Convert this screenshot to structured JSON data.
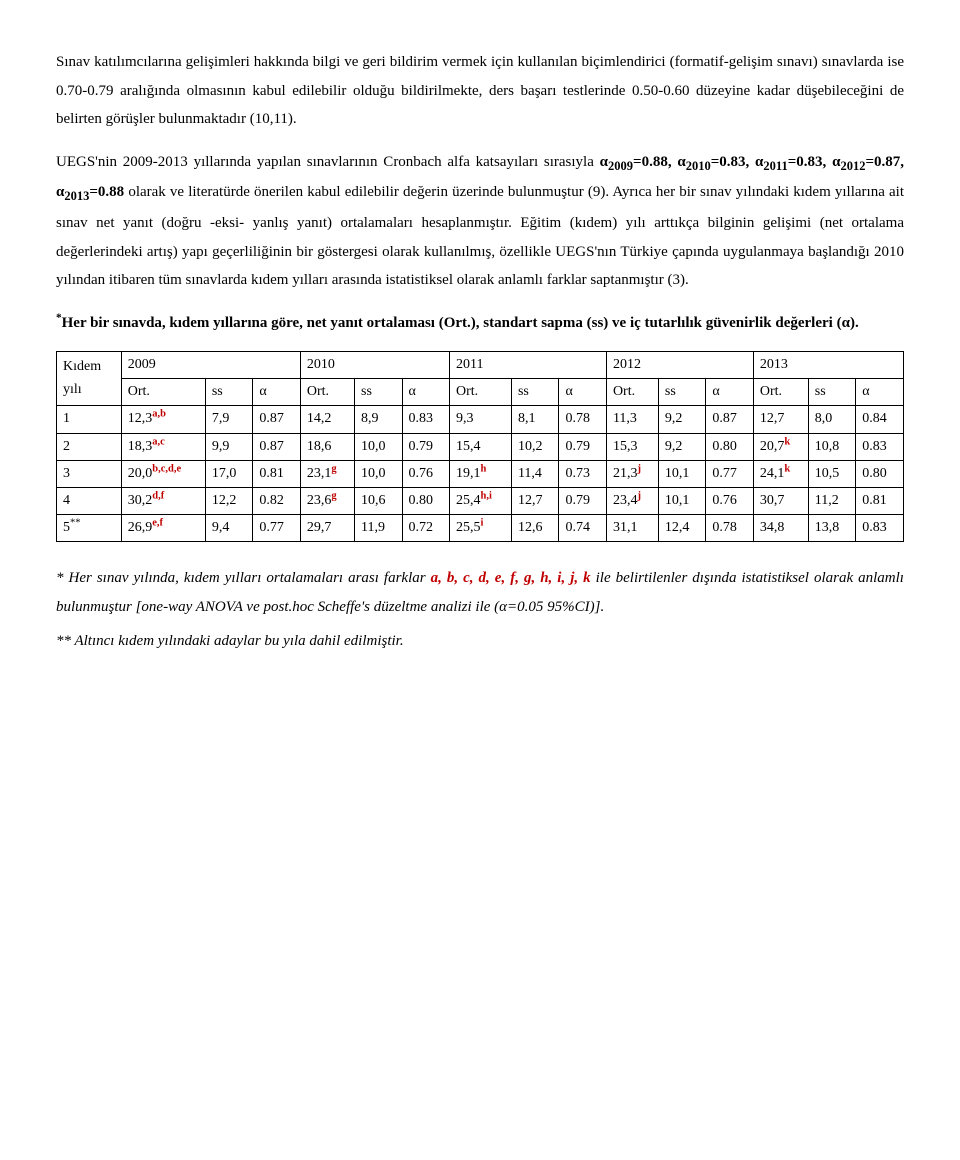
{
  "para1": "Sınav katılımcılarına gelişimleri hakkında bilgi ve geri bildirim vermek için kullanılan biçimlendirici (formatif-gelişim sınavı) sınavlarda ise 0.70-0.79 aralığında olmasının kabul edilebilir olduğu bildirilmekte, ders başarı testlerinde 0.50-0.60 düzeyine kadar düşebileceğini de belirten görüşler bulunmaktadır (10,11).",
  "para2_pre": "UEGS'nin 2009-2013 yıllarında yapılan sınavlarının Cronbach alfa katsayıları sırasıyla ",
  "alpha_list": {
    "a2009_lbl": "α",
    "a2009_sub": "2009",
    "a2009_val": "=0.88, ",
    "a2010_lbl": "α",
    "a2010_sub": "2010",
    "a2010_val": "=0.83, ",
    "a2011_lbl": "α",
    "a2011_sub": "2011",
    "a2011_val": "=0.83, ",
    "a2012_lbl": "α",
    "a2012_sub": "2012",
    "a2012_val": "=0.87, ",
    "a2013_lbl": "α",
    "a2013_sub": "2013",
    "a2013_val": "=0.88"
  },
  "para2_post": " olarak ve literatürde önerilen kabul edilebilir değerin üzerinde bulunmuştur (9). Ayrıca her bir sınav yılındaki kıdem yıllarına ait sınav net yanıt (doğru -eksi- yanlış yanıt) ortalamaları hesaplanmıştır. Eğitim (kıdem) yılı arttıkça bilginin gelişimi (net ortalama değerlerindeki artış) yapı geçerliliğinin bir göstergesi olarak kullanılmış, özellikle UEGS'nın Türkiye çapında uygulanmaya başlandığı 2010 yılından itibaren tüm sınavlarda kıdem yılları arasında istatistiksel olarak anlamlı farklar saptanmıştır (3).",
  "table_caption_star": "*",
  "table_caption": "Her bir sınavda, kıdem yıllarına göre, net yanıt ortalaması (Ort.), standart sapma (ss) ve iç tutarlılık güvenirlik değerleri (α).",
  "table": {
    "header": {
      "kidem_line1": "Kıdem",
      "kidem_line2": "yılı",
      "years": [
        "2009",
        "2010",
        "2011",
        "2012",
        "2013"
      ],
      "subcols": [
        "Ort.",
        "ss",
        "α"
      ]
    },
    "rows": [
      {
        "kidem": "1",
        "kidem_sup": "",
        "cells": [
          {
            "ort": "12,3",
            "sup": "a,b",
            "sup_red": true,
            "ss": "7,9",
            "a": "0.87"
          },
          {
            "ort": "14,2",
            "sup": "",
            "sup_red": false,
            "ss": "8,9",
            "a": "0.83"
          },
          {
            "ort": "9,3",
            "sup": "",
            "sup_red": false,
            "ss": "8,1",
            "a": "0.78"
          },
          {
            "ort": "11,3",
            "sup": "",
            "sup_red": false,
            "ss": "9,2",
            "a": "0.87"
          },
          {
            "ort": "12,7",
            "sup": "",
            "sup_red": false,
            "ss": "8,0",
            "a": "0.84"
          }
        ]
      },
      {
        "kidem": "2",
        "kidem_sup": "",
        "cells": [
          {
            "ort": "18,3",
            "sup": "a,c",
            "sup_red": true,
            "ss": "9,9",
            "a": "0.87"
          },
          {
            "ort": "18,6",
            "sup": "",
            "sup_red": false,
            "ss": "10,0",
            "a": "0.79"
          },
          {
            "ort": "15,4",
            "sup": "",
            "sup_red": false,
            "ss": "10,2",
            "a": "0.79"
          },
          {
            "ort": "15,3",
            "sup": "",
            "sup_red": false,
            "ss": "9,2",
            "a": "0.80"
          },
          {
            "ort": "20,7",
            "sup": "k",
            "sup_red": true,
            "ss": "10,8",
            "a": "0.83"
          }
        ]
      },
      {
        "kidem": "3",
        "kidem_sup": "",
        "cells": [
          {
            "ort": "20,0",
            "sup": "b,c,d,e",
            "sup_red": true,
            "ss": "17,0",
            "a": "0.81"
          },
          {
            "ort": "23,1",
            "sup": "g",
            "sup_red": true,
            "ss": "10,0",
            "a": "0.76"
          },
          {
            "ort": "19,1",
            "sup": "h",
            "sup_red": true,
            "ss": "11,4",
            "a": "0.73"
          },
          {
            "ort": "21,3",
            "sup": "j",
            "sup_red": true,
            "ss": "10,1",
            "a": "0.77"
          },
          {
            "ort": "24,1",
            "sup": "k",
            "sup_red": true,
            "ss": "10,5",
            "a": "0.80"
          }
        ]
      },
      {
        "kidem": "4",
        "kidem_sup": "",
        "cells": [
          {
            "ort": "30,2",
            "sup": "d,f",
            "sup_red": true,
            "ss": "12,2",
            "a": "0.82"
          },
          {
            "ort": "23,6",
            "sup": "g",
            "sup_red": true,
            "ss": "10,6",
            "a": "0.80"
          },
          {
            "ort": "25,4",
            "sup": "h,i",
            "sup_red": true,
            "ss": "12,7",
            "a": "0.79"
          },
          {
            "ort": "23,4",
            "sup": "j",
            "sup_red": true,
            "ss": "10,1",
            "a": "0.76"
          },
          {
            "ort": "30,7",
            "sup": "",
            "sup_red": false,
            "ss": "11,2",
            "a": "0.81"
          }
        ]
      },
      {
        "kidem": "5",
        "kidem_sup": "**",
        "cells": [
          {
            "ort": "26,9",
            "sup": "e,f",
            "sup_red": true,
            "ss": "9,4",
            "a": "0.77"
          },
          {
            "ort": "29,7",
            "sup": "",
            "sup_red": false,
            "ss": "11,9",
            "a": "0.72"
          },
          {
            "ort": "25,5",
            "sup": "i",
            "sup_red": true,
            "ss": "12,6",
            "a": "0.74"
          },
          {
            "ort": "31,1",
            "sup": "",
            "sup_red": false,
            "ss": "12,4",
            "a": "0.78"
          },
          {
            "ort": "34,8",
            "sup": "",
            "sup_red": false,
            "ss": "13,8",
            "a": "0.83"
          }
        ]
      }
    ]
  },
  "footnote1_pre": "* Her sınav yılında, kıdem yılları ortalamaları arası farklar ",
  "footnote1_red": "a, b, c, d, e, f, g, h, i, j, k",
  "footnote1_post": " ile belirtilenler dışında istatistiksel olarak anlamlı bulunmuştur [one-way ANOVA ve post.hoc Scheffe's düzeltme analizi ile (α=0.05 95%CI)].",
  "footnote2": "** Altıncı kıdem yılındaki adaylar bu yıla dahil edilmiştir."
}
